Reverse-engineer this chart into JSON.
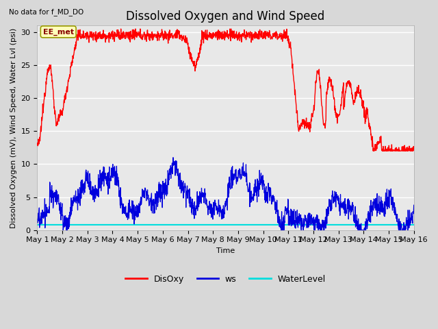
{
  "title": "Dissolved Oxygen and Wind Speed",
  "subtitle": "No data for f_MD_DO",
  "xlabel": "Time",
  "ylabel": "Dissolved Oxygen (mV), Wind Speed, Water Lvl (psi)",
  "ylim": [
    0,
    31
  ],
  "yticks": [
    0,
    5,
    10,
    15,
    20,
    25,
    30
  ],
  "xtick_labels": [
    "May 1",
    "May 2",
    "May 3",
    "May 4",
    "May 5",
    "May 6",
    "May 7",
    "May 8",
    "May 9",
    "May 10",
    "May 11",
    "May 12",
    "May 13",
    "May 14",
    "May 15",
    "May 16"
  ],
  "annotation_box": "EE_met",
  "background_color": "#d8d8d8",
  "plot_bg_color": "#e8e8e8",
  "grid_color": "#ffffff",
  "disoxy_color": "#ff0000",
  "ws_color": "#0000dd",
  "waterlevel_color": "#00dddd",
  "waterlevel_value": 0.8,
  "title_fontsize": 12,
  "label_fontsize": 8,
  "tick_fontsize": 8,
  "legend_fontsize": 9
}
